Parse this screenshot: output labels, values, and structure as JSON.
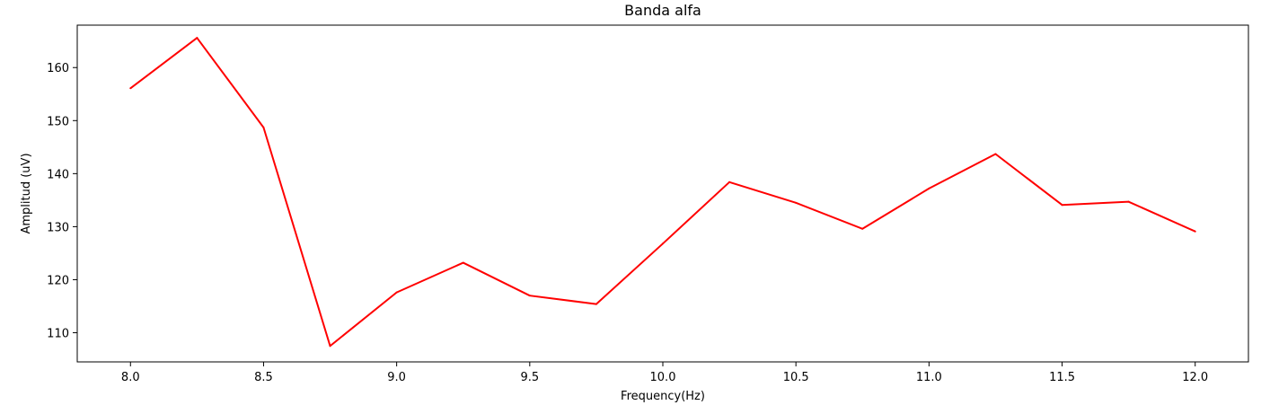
{
  "chart_data": {
    "type": "line",
    "title": "Banda alfa",
    "xlabel": "Frequency(Hz)",
    "ylabel": "Amplitud (uV)",
    "xlim": [
      7.8,
      12.2
    ],
    "ylim": [
      104.5,
      168.0
    ],
    "x_ticks": [
      8.0,
      8.5,
      9.0,
      9.5,
      10.0,
      10.5,
      11.0,
      11.5,
      12.0
    ],
    "x_tick_labels": [
      "8.0",
      "8.5",
      "9.0",
      "9.5",
      "10.0",
      "10.5",
      "11.0",
      "11.5",
      "12.0"
    ],
    "y_ticks": [
      110,
      120,
      130,
      140,
      150,
      160
    ],
    "y_tick_labels": [
      "110",
      "120",
      "130",
      "140",
      "150",
      "160"
    ],
    "grid": false,
    "series": [
      {
        "color": "#ff0000",
        "x": [
          8.0,
          8.25,
          8.5,
          8.75,
          9.0,
          9.25,
          9.5,
          9.75,
          10.0,
          10.25,
          10.5,
          10.75,
          11.0,
          11.25,
          11.5,
          11.75,
          12.0
        ],
        "values": [
          156.1,
          165.6,
          148.7,
          107.5,
          117.6,
          123.2,
          117.0,
          115.4,
          126.8,
          138.4,
          134.5,
          129.6,
          137.2,
          143.7,
          134.1,
          134.7,
          129.1
        ]
      }
    ]
  }
}
